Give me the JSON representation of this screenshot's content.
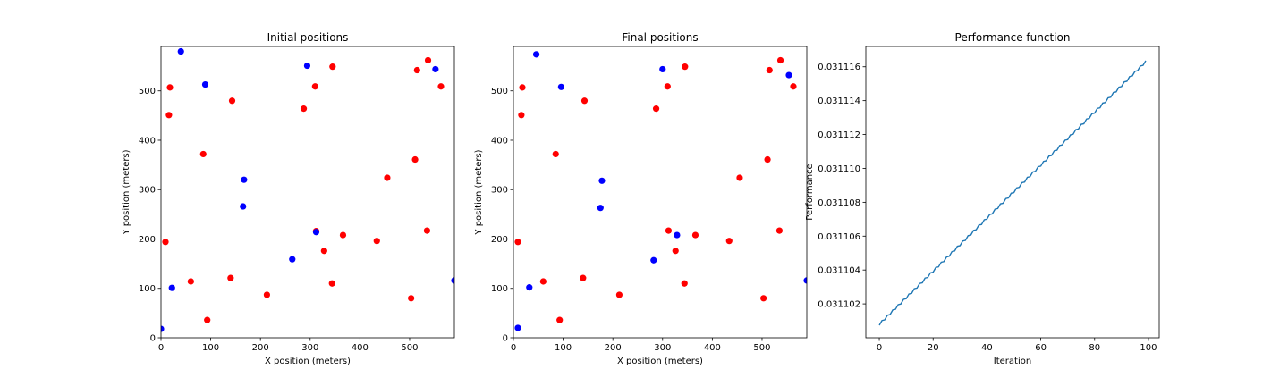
{
  "chart_data": [
    {
      "type": "scatter",
      "title": "Initial positions",
      "xlabel": "X position (meters)",
      "ylabel": "Y position (meters)",
      "xlim": [
        0,
        590
      ],
      "ylim": [
        0,
        590
      ],
      "xticks": [
        0,
        100,
        200,
        300,
        400,
        500
      ],
      "yticks": [
        0,
        100,
        200,
        300,
        400,
        500
      ],
      "grid": false,
      "colors": {
        "red": "#ff0000",
        "blue": "#0000ff"
      },
      "series": [
        {
          "color": "red",
          "points": [
            [
              18,
              507
            ],
            [
              16,
              451
            ],
            [
              9,
              194
            ],
            [
              60,
              114
            ],
            [
              85,
              372
            ],
            [
              93,
              36
            ],
            [
              140,
              121
            ],
            [
              143,
              480
            ],
            [
              213,
              87
            ],
            [
              287,
              464
            ],
            [
              310,
              509
            ],
            [
              312,
              216
            ],
            [
              328,
              176
            ],
            [
              344,
              110
            ],
            [
              345,
              549
            ],
            [
              366,
              208
            ],
            [
              434,
              196
            ],
            [
              455,
              324
            ],
            [
              503,
              80
            ],
            [
              511,
              361
            ],
            [
              515,
              542
            ],
            [
              535,
              217
            ],
            [
              537,
              562
            ],
            [
              563,
              509
            ]
          ]
        },
        {
          "color": "blue",
          "points": [
            [
              0,
              18
            ],
            [
              22,
              101
            ],
            [
              40,
              580
            ],
            [
              89,
              513
            ],
            [
              165,
              266
            ],
            [
              167,
              320
            ],
            [
              264,
              159
            ],
            [
              294,
              551
            ],
            [
              312,
              214
            ],
            [
              552,
              544
            ],
            [
              590,
              116
            ]
          ]
        }
      ]
    },
    {
      "type": "scatter",
      "title": "Final positions",
      "xlabel": "X position (meters)",
      "ylabel": "Y position (meters)",
      "xlim": [
        0,
        590
      ],
      "ylim": [
        0,
        590
      ],
      "xticks": [
        0,
        100,
        200,
        300,
        400,
        500
      ],
      "yticks": [
        0,
        100,
        200,
        300,
        400,
        500
      ],
      "grid": false,
      "colors": {
        "red": "#ff0000",
        "blue": "#0000ff"
      },
      "series": [
        {
          "color": "red",
          "points": [
            [
              18,
              507
            ],
            [
              16,
              451
            ],
            [
              9,
              194
            ],
            [
              60,
              114
            ],
            [
              85,
              372
            ],
            [
              93,
              36
            ],
            [
              140,
              121
            ],
            [
              143,
              480
            ],
            [
              213,
              87
            ],
            [
              287,
              464
            ],
            [
              310,
              509
            ],
            [
              312,
              217
            ],
            [
              326,
              176
            ],
            [
              344,
              110
            ],
            [
              345,
              549
            ],
            [
              366,
              208
            ],
            [
              434,
              196
            ],
            [
              455,
              324
            ],
            [
              503,
              80
            ],
            [
              511,
              361
            ],
            [
              515,
              542
            ],
            [
              535,
              217
            ],
            [
              537,
              562
            ],
            [
              563,
              509
            ]
          ]
        },
        {
          "color": "blue",
          "points": [
            [
              9,
              20
            ],
            [
              32,
              102
            ],
            [
              46,
              574
            ],
            [
              96,
              508
            ],
            [
              175,
              263
            ],
            [
              178,
              318
            ],
            [
              282,
              157
            ],
            [
              300,
              544
            ],
            [
              329,
              208
            ],
            [
              554,
              532
            ],
            [
              590,
              116
            ]
          ]
        }
      ]
    },
    {
      "type": "line",
      "title": "Performance function",
      "xlabel": "Iteration",
      "ylabel": "Performance",
      "xlim": [
        -5,
        104
      ],
      "ylim": [
        0.0311,
        0.0311172
      ],
      "xticks": [
        0,
        20,
        40,
        60,
        80,
        100
      ],
      "yticks": [
        "0.031102",
        "0.031104",
        "0.031106",
        "0.031108",
        "0.031110",
        "0.031112",
        "0.031114",
        "0.031116"
      ],
      "grid": false,
      "color": "#1f77b4",
      "x_range": [
        0,
        99
      ],
      "y_start": 0.0311008,
      "y_end": 0.0311163
    }
  ]
}
